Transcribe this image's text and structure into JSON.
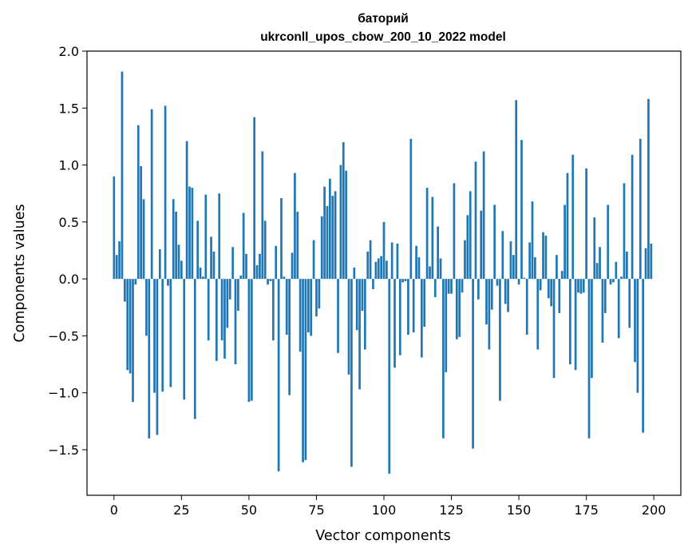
{
  "chart_data": {
    "type": "bar",
    "title": "баторий",
    "subtitle": "ukrconll_upos_cbow_200_10_2022 model",
    "xlabel": "Vector components",
    "ylabel": "Components values",
    "xlim": [
      -10,
      210
    ],
    "ylim": [
      -1.9,
      2.0
    ],
    "xticks": [
      0,
      25,
      50,
      75,
      100,
      125,
      150,
      175,
      200
    ],
    "yticks": [
      -1.5,
      -1.0,
      -0.5,
      0.0,
      0.5,
      1.0,
      1.5,
      2.0
    ],
    "xtick_labels": [
      "0",
      "25",
      "50",
      "75",
      "100",
      "125",
      "150",
      "175",
      "200"
    ],
    "ytick_labels": [
      "−1.5",
      "−1.0",
      "−0.5",
      "0.0",
      "0.5",
      "1.0",
      "1.5",
      "2.0"
    ],
    "bar_color": "#1f77b4",
    "grid": false,
    "x": [
      0,
      1,
      2,
      3,
      4,
      5,
      6,
      7,
      8,
      9,
      10,
      11,
      12,
      13,
      14,
      15,
      16,
      17,
      18,
      19,
      20,
      21,
      22,
      23,
      24,
      25,
      26,
      27,
      28,
      29,
      30,
      31,
      32,
      33,
      34,
      35,
      36,
      37,
      38,
      39,
      40,
      41,
      42,
      43,
      44,
      45,
      46,
      47,
      48,
      49,
      50,
      51,
      52,
      53,
      54,
      55,
      56,
      57,
      58,
      59,
      60,
      61,
      62,
      63,
      64,
      65,
      66,
      67,
      68,
      69,
      70,
      71,
      72,
      73,
      74,
      75,
      76,
      77,
      78,
      79,
      80,
      81,
      82,
      83,
      84,
      85,
      86,
      87,
      88,
      89,
      90,
      91,
      92,
      93,
      94,
      95,
      96,
      97,
      98,
      99,
      100,
      101,
      102,
      103,
      104,
      105,
      106,
      107,
      108,
      109,
      110,
      111,
      112,
      113,
      114,
      115,
      116,
      117,
      118,
      119,
      120,
      121,
      122,
      123,
      124,
      125,
      126,
      127,
      128,
      129,
      130,
      131,
      132,
      133,
      134,
      135,
      136,
      137,
      138,
      139,
      140,
      141,
      142,
      143,
      144,
      145,
      146,
      147,
      148,
      149,
      150,
      151,
      152,
      153,
      154,
      155,
      156,
      157,
      158,
      159,
      160,
      161,
      162,
      163,
      164,
      165,
      166,
      167,
      168,
      169,
      170,
      171,
      172,
      173,
      174,
      175,
      176,
      177,
      178,
      179,
      180,
      181,
      182,
      183,
      184,
      185,
      186,
      187,
      188,
      189,
      190,
      191,
      192,
      193,
      194,
      195,
      196,
      197,
      198,
      199
    ],
    "values": [
      0.9,
      0.21,
      0.33,
      1.82,
      -0.2,
      -0.8,
      -0.83,
      -1.08,
      -0.05,
      1.35,
      0.99,
      0.7,
      -0.5,
      -1.4,
      1.49,
      -1.0,
      -1.37,
      0.26,
      -0.99,
      1.52,
      -0.06,
      -0.95,
      0.7,
      0.59,
      0.3,
      0.16,
      -1.06,
      1.21,
      0.81,
      0.8,
      -1.23,
      0.51,
      0.1,
      0.02,
      0.74,
      -0.54,
      0.37,
      0.24,
      -0.72,
      0.75,
      -0.54,
      -0.7,
      -0.43,
      -0.18,
      0.28,
      -0.75,
      -0.28,
      0.03,
      0.58,
      0.22,
      -1.08,
      -1.07,
      1.42,
      0.12,
      0.22,
      1.12,
      0.51,
      -0.05,
      -0.02,
      -0.54,
      0.29,
      -1.69,
      0.71,
      0.02,
      -0.49,
      -1.02,
      0.23,
      0.93,
      0.59,
      -0.64,
      -1.61,
      -1.59,
      -0.47,
      -0.5,
      0.34,
      -0.33,
      -0.26,
      0.55,
      0.81,
      0.64,
      0.88,
      0.73,
      0.77,
      -0.65,
      1.0,
      1.2,
      0.95,
      -0.84,
      -1.65,
      0.1,
      -0.45,
      -0.97,
      -0.28,
      -0.62,
      0.24,
      0.34,
      -0.09,
      0.15,
      0.18,
      0.2,
      0.5,
      0.16,
      -1.71,
      0.32,
      -0.78,
      0.31,
      -0.67,
      -0.03,
      -0.02,
      -0.49,
      1.23,
      -0.47,
      0.29,
      0.19,
      -0.69,
      -0.42,
      0.8,
      0.11,
      0.72,
      -0.16,
      0.46,
      0.18,
      -1.4,
      -0.82,
      -0.13,
      -0.13,
      0.84,
      -0.53,
      -0.51,
      -0.12,
      0.34,
      0.56,
      0.77,
      -1.49,
      1.03,
      -0.18,
      0.6,
      1.12,
      -0.4,
      -0.62,
      -0.27,
      0.65,
      -0.06,
      -1.07,
      0.42,
      -0.22,
      -0.29,
      0.33,
      0.21,
      1.57,
      -0.05,
      1.22,
      0.01,
      -0.49,
      0.32,
      0.68,
      0.19,
      -0.62,
      -0.1,
      0.41,
      0.38,
      -0.17,
      -0.24,
      -0.87,
      0.21,
      -0.3,
      0.07,
      0.65,
      0.93,
      -0.75,
      1.09,
      -0.8,
      -0.12,
      -0.13,
      -0.12,
      0.97,
      -1.4,
      -0.87,
      0.54,
      0.14,
      0.28,
      -0.56,
      -0.3,
      0.65,
      -0.05,
      -0.03,
      0.15,
      -0.52,
      0.02,
      0.84,
      0.24,
      -0.43,
      1.09,
      -0.73,
      -1.0,
      1.23,
      -1.35,
      0.27,
      1.58,
      0.31
    ]
  }
}
